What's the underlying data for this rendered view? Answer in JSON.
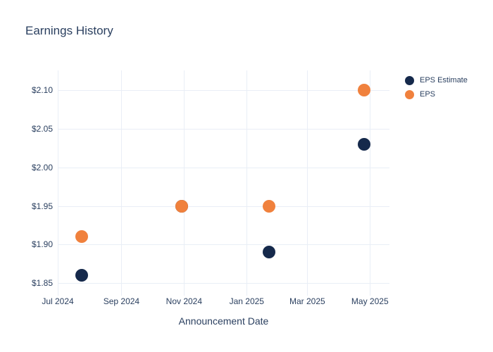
{
  "chart_data": {
    "type": "scatter",
    "title": "Earnings History",
    "xlabel": "Announcement Date",
    "ylabel": "",
    "grid": true,
    "legend_position": "top-right-outside",
    "ylim": [
      1.838,
      2.126
    ],
    "xlim": [
      "2024-07-01",
      "2025-05-20"
    ],
    "y_ticks": [
      {
        "value": 1.85,
        "label": "$1.85"
      },
      {
        "value": 1.9,
        "label": "$1.90"
      },
      {
        "value": 1.95,
        "label": "$1.95"
      },
      {
        "value": 2.0,
        "label": "$2.00"
      },
      {
        "value": 2.05,
        "label": "$2.05"
      },
      {
        "value": 2.1,
        "label": "$2.10"
      }
    ],
    "x_ticks": [
      {
        "date": "2024-07-01",
        "label": "Jul 2024"
      },
      {
        "date": "2024-09-01",
        "label": "Sep 2024"
      },
      {
        "date": "2024-11-01",
        "label": "Nov 2024"
      },
      {
        "date": "2025-01-01",
        "label": "Jan 2025"
      },
      {
        "date": "2025-03-01",
        "label": "Mar 2025"
      },
      {
        "date": "2025-05-01",
        "label": "May 2025"
      }
    ],
    "series": [
      {
        "name": "EPS Estimate",
        "color": "#15294b",
        "points": [
          {
            "date": "2024-07-24",
            "value": 1.86
          },
          {
            "date": "2024-10-30",
            "value": 1.95
          },
          {
            "date": "2025-01-23",
            "value": 1.89
          },
          {
            "date": "2025-04-25",
            "value": 2.03
          }
        ]
      },
      {
        "name": "EPS",
        "color": "#f0813d",
        "points": [
          {
            "date": "2024-07-24",
            "value": 1.91
          },
          {
            "date": "2024-10-30",
            "value": 1.95
          },
          {
            "date": "2025-01-23",
            "value": 1.95
          },
          {
            "date": "2025-04-25",
            "value": 2.1
          }
        ]
      }
    ]
  },
  "colors": {
    "background": "#ffffff",
    "gridline": "#e9eef6",
    "text": "#2a3f5f"
  }
}
